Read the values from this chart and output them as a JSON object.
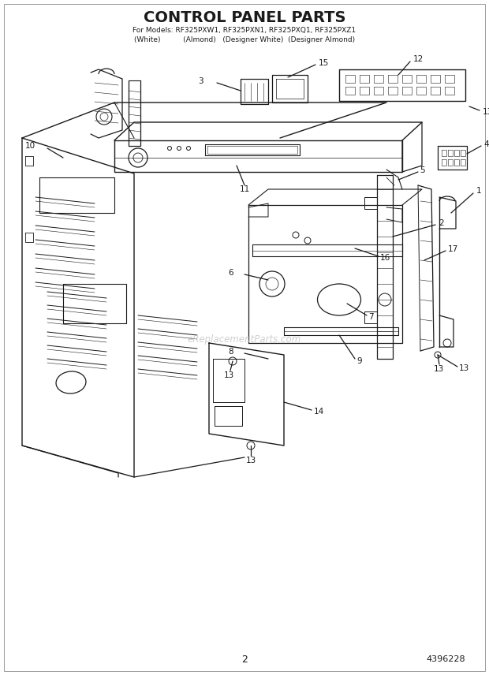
{
  "title": "CONTROL PANEL PARTS",
  "subtitle1": "For Models: RF325PXW1, RF325PXN1, RF325PXQ1, RF325PXZ1",
  "subtitle2": "(White)          (Almond)   (Designer White)  (Designer Almond)",
  "page_number": "2",
  "part_number": "4396228",
  "bg_color": "#ffffff",
  "line_color": "#1a1a1a",
  "text_color": "#1a1a1a",
  "watermark": "eReplacementParts.com",
  "title_fontsize": 14,
  "sub_fontsize": 6.5,
  "label_fontsize": 7.5
}
